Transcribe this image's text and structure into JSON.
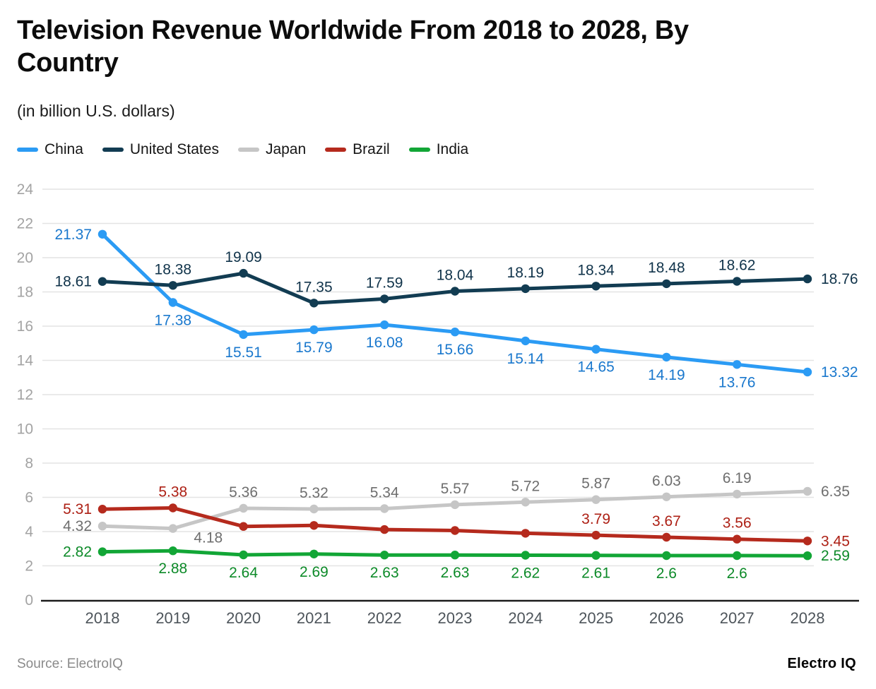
{
  "header": {
    "title": "Television Revenue Worldwide From 2018 to 2028, By Country",
    "title_lines": [
      "Television Revenue Worldwide From 2018 to 2028, By",
      "Country"
    ],
    "subtitle": "(in billion U.S. dollars)"
  },
  "footer": {
    "source": "Source: ElectroIQ",
    "brand": "Electro IQ"
  },
  "chart_data": {
    "type": "line",
    "title": "Television Revenue Worldwide From 2018 to 2028, By Country",
    "unit": "billion U.S. dollars",
    "categories": [
      "2018",
      "2019",
      "2020",
      "2021",
      "2022",
      "2023",
      "2024",
      "2025",
      "2026",
      "2027",
      "2028"
    ],
    "ylim": [
      0,
      24
    ],
    "ytick_step": 2,
    "grid": true,
    "legend_position": "top",
    "series": [
      {
        "name": "China",
        "color": "#2b9bf4",
        "label_color": "#1a78cd",
        "values": [
          21.37,
          17.38,
          15.51,
          15.79,
          16.08,
          15.66,
          15.14,
          14.65,
          14.19,
          13.76,
          13.32
        ],
        "point_labels": [
          {
            "text": "21.37",
            "pos": "left"
          },
          {
            "text": "17.38",
            "pos": "below"
          },
          {
            "text": "15.51",
            "pos": "below"
          },
          {
            "text": "15.79",
            "pos": "below"
          },
          {
            "text": "16.08",
            "pos": "below"
          },
          {
            "text": "15.66",
            "pos": "below"
          },
          {
            "text": "15.14",
            "pos": "below"
          },
          {
            "text": "14.65",
            "pos": "below"
          },
          {
            "text": "14.19",
            "pos": "below"
          },
          {
            "text": "13.76",
            "pos": "below"
          },
          {
            "text": "13.32",
            "pos": "right"
          }
        ]
      },
      {
        "name": "United States",
        "color": "#123c52",
        "label_color": "#10334a",
        "values": [
          18.61,
          18.38,
          19.09,
          17.35,
          17.59,
          18.04,
          18.19,
          18.34,
          18.48,
          18.62,
          18.76
        ],
        "point_labels": [
          {
            "text": "18.61",
            "pos": "left"
          },
          {
            "text": "18.38",
            "pos": "above"
          },
          {
            "text": "19.09",
            "pos": "above"
          },
          {
            "text": "17.35",
            "pos": "above"
          },
          {
            "text": "17.59",
            "pos": "above"
          },
          {
            "text": "18.04",
            "pos": "above"
          },
          {
            "text": "18.19",
            "pos": "above"
          },
          {
            "text": "18.34",
            "pos": "above"
          },
          {
            "text": "18.48",
            "pos": "above"
          },
          {
            "text": "18.62",
            "pos": "above"
          },
          {
            "text": "18.76",
            "pos": "right"
          }
        ]
      },
      {
        "name": "Japan",
        "color": "#c6c6c6",
        "label_color": "#6e6e6e",
        "values": [
          4.32,
          4.18,
          5.36,
          5.32,
          5.34,
          5.57,
          5.72,
          5.87,
          6.03,
          6.19,
          6.35
        ],
        "point_labels": [
          {
            "text": "4.32",
            "pos": "left"
          },
          {
            "text": "4.18",
            "pos": "below",
            "dx": 50,
            "dy": -12
          },
          {
            "text": "5.36",
            "pos": "above"
          },
          {
            "text": "5.32",
            "pos": "above"
          },
          {
            "text": "5.34",
            "pos": "above"
          },
          {
            "text": "5.57",
            "pos": "above"
          },
          {
            "text": "5.72",
            "pos": "above"
          },
          {
            "text": "5.87",
            "pos": "above"
          },
          {
            "text": "6.03",
            "pos": "above"
          },
          {
            "text": "6.19",
            "pos": "above"
          },
          {
            "text": "6.35",
            "pos": "right"
          }
        ]
      },
      {
        "name": "Brazil",
        "color": "#b52a1d",
        "label_color": "#ad2015",
        "values": [
          5.31,
          5.38,
          4.3,
          4.36,
          4.12,
          4.06,
          3.9,
          3.79,
          3.67,
          3.56,
          3.45
        ],
        "point_labels": [
          {
            "text": "5.31",
            "pos": "left"
          },
          {
            "text": "5.38",
            "pos": "above"
          },
          null,
          null,
          null,
          null,
          null,
          {
            "text": "3.79",
            "pos": "above"
          },
          {
            "text": "3.67",
            "pos": "above"
          },
          {
            "text": "3.56",
            "pos": "above"
          },
          {
            "text": "3.45",
            "pos": "right"
          }
        ]
      },
      {
        "name": "India",
        "color": "#12a636",
        "label_color": "#0c8a28",
        "values": [
          2.82,
          2.88,
          2.64,
          2.69,
          2.63,
          2.63,
          2.62,
          2.61,
          2.6,
          2.6,
          2.59
        ],
        "point_labels": [
          {
            "text": "2.82",
            "pos": "left"
          },
          {
            "text": "2.88",
            "pos": "below"
          },
          {
            "text": "2.64",
            "pos": "below"
          },
          {
            "text": "2.69",
            "pos": "below"
          },
          {
            "text": "2.63",
            "pos": "below"
          },
          {
            "text": "2.63",
            "pos": "below"
          },
          {
            "text": "2.62",
            "pos": "below"
          },
          {
            "text": "2.61",
            "pos": "below"
          },
          {
            "text": "2.6",
            "pos": "below"
          },
          {
            "text": "2.6",
            "pos": "below"
          },
          {
            "text": "2.59",
            "pos": "right"
          }
        ]
      }
    ]
  }
}
